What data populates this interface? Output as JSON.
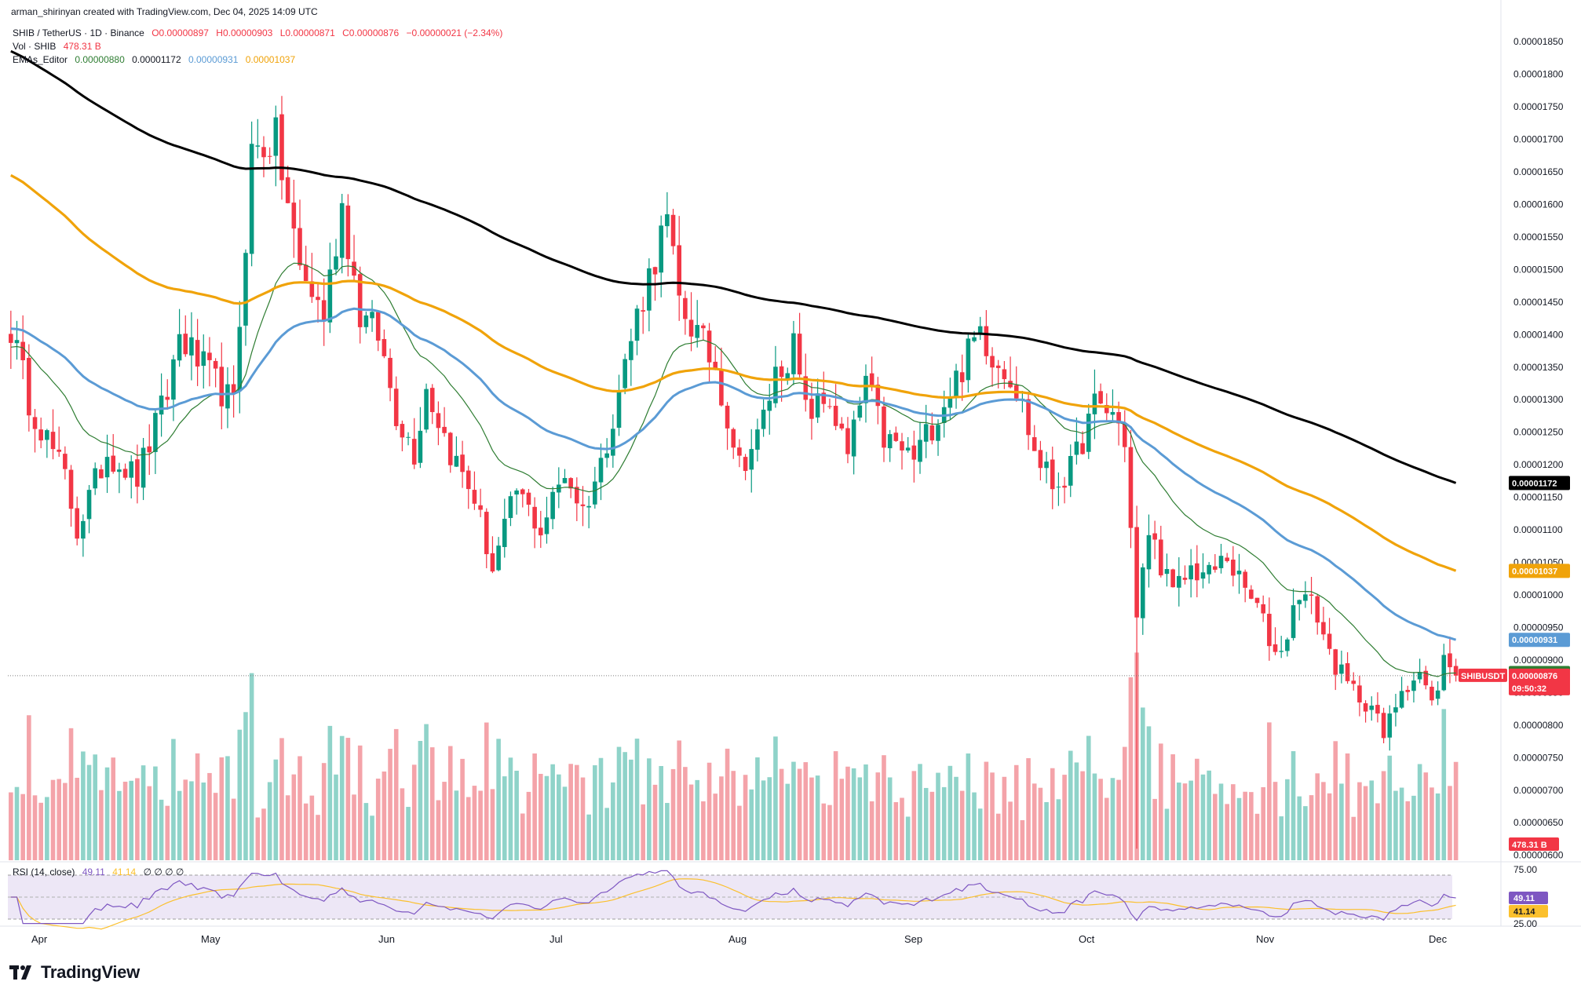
{
  "attribution": "arman_shirinyan created with TradingView.com, Dec 04, 2025 14:09 UTC",
  "legend": {
    "symbol": "SHIB / TetherUS · 1D · Binance",
    "open": "O0.00000897",
    "high": "H0.00000903",
    "low": "L0.00000871",
    "close": "C0.00000876",
    "change": "−0.00000021 (−2.34%)",
    "vol_label": "Vol · SHIB",
    "vol_value": "478.31 B",
    "ema_label": "EMAs_Editor",
    "ema_values": [
      "0.00000880",
      "0.00001172",
      "0.00000931",
      "0.00001037"
    ]
  },
  "rsi_legend": {
    "label": "RSI (14, close)",
    "rsi_value": "49.11",
    "ma_value": "41.14",
    "zeros": "∅ ∅ ∅ ∅"
  },
  "colors": {
    "up": "#089981",
    "down": "#f23645",
    "vol_up": "#8fd3c9",
    "vol_down": "#f4a3a9",
    "ema20": "#2e7d32",
    "ema200": "#000000",
    "ema50": "#5b9bd5",
    "ema100": "#f0a30a",
    "rsi": "#7e57c2",
    "rsi_ma": "#fbc02d",
    "rsi_band": "#ede7f6"
  },
  "footer": {
    "logo_text": "TradingView"
  },
  "chart_data": {
    "type": "candlestick",
    "symbol": "SHIBUSDT",
    "interval": "1D",
    "y_axis_ticks": [
      "0.00001850",
      "0.00001800",
      "0.00001750",
      "0.00001700",
      "0.00001650",
      "0.00001600",
      "0.00001550",
      "0.00001500",
      "0.00001450",
      "0.00001400",
      "0.00001350",
      "0.00001300",
      "0.00001250",
      "0.00001200",
      "0.00001150",
      "0.00001100",
      "0.00001050",
      "0.00001000",
      "0.00000950",
      "0.00000900",
      "0.00000850",
      "0.00000800",
      "0.00000750",
      "0.00000700",
      "0.00000650",
      "0.00000600"
    ],
    "ylim": [
      5.9e-06,
      1.89e-05
    ],
    "x_axis_labels": [
      "Apr",
      "May",
      "Jun",
      "Jul",
      "Aug",
      "Sep",
      "Oct",
      "Nov",
      "Dec"
    ],
    "last_price": {
      "label": "SHIBUSDT",
      "value": "0.00000876",
      "countdown": "09:50:32"
    },
    "price_tags": [
      {
        "value": "0.00001172",
        "series": "EMA 200"
      },
      {
        "value": "0.00001037",
        "series": "EMA 100"
      },
      {
        "value": "0.00000931",
        "series": "EMA 50"
      },
      {
        "value": "0.00000880",
        "series": "EMA 20"
      }
    ],
    "volume_tag": "478.31 B",
    "ema_endpoints": {
      "ema20": 8.8e-06,
      "ema50": 9.31e-06,
      "ema100": 1.037e-05,
      "ema200": 1.172e-05
    },
    "price_path_anchors": [
      [
        0,
        1.41e-05
      ],
      [
        3,
        1.3e-05
      ],
      [
        9,
        1.18e-05
      ],
      [
        11,
        1.1e-05
      ],
      [
        16,
        1.22e-05
      ],
      [
        21,
        1.18e-05
      ],
      [
        26,
        1.31e-05
      ],
      [
        28,
        1.4e-05
      ],
      [
        31,
        1.36e-05
      ],
      [
        37,
        1.29e-05
      ],
      [
        40,
        1.68e-05
      ],
      [
        44,
        1.7e-05
      ],
      [
        48,
        1.5e-05
      ],
      [
        52,
        1.43e-05
      ],
      [
        55,
        1.6e-05
      ],
      [
        58,
        1.43e-05
      ],
      [
        61,
        1.4e-05
      ],
      [
        64,
        1.28e-05
      ],
      [
        67,
        1.22e-05
      ],
      [
        69,
        1.32e-05
      ],
      [
        73,
        1.22e-05
      ],
      [
        77,
        1.15e-05
      ],
      [
        80,
        1.04e-05
      ],
      [
        84,
        1.16e-05
      ],
      [
        88,
        1.1e-05
      ],
      [
        92,
        1.19e-05
      ],
      [
        95,
        1.13e-05
      ],
      [
        98,
        1.2e-05
      ],
      [
        100,
        1.28e-05
      ],
      [
        104,
        1.43e-05
      ],
      [
        108,
        1.55e-05
      ],
      [
        109,
        1.57e-05
      ],
      [
        111,
        1.45e-05
      ],
      [
        114,
        1.4e-05
      ],
      [
        117,
        1.35e-05
      ],
      [
        121,
        1.2e-05
      ],
      [
        124,
        1.24e-05
      ],
      [
        127,
        1.34e-05
      ],
      [
        130,
        1.38e-05
      ],
      [
        132,
        1.28e-05
      ],
      [
        136,
        1.3e-05
      ],
      [
        139,
        1.21e-05
      ],
      [
        142,
        1.33e-05
      ],
      [
        145,
        1.24e-05
      ],
      [
        150,
        1.21e-05
      ],
      [
        154,
        1.28e-05
      ],
      [
        158,
        1.35e-05
      ],
      [
        161,
        1.41e-05
      ],
      [
        163,
        1.37e-05
      ],
      [
        166,
        1.34e-05
      ],
      [
        168,
        1.29e-05
      ],
      [
        170,
        1.22e-05
      ],
      [
        173,
        1.17e-05
      ],
      [
        176,
        1.19e-05
      ],
      [
        180,
        1.29e-05
      ],
      [
        183,
        1.28e-05
      ],
      [
        185,
        1.24e-05
      ],
      [
        187,
        9.6e-06
      ],
      [
        189,
        1.1e-05
      ],
      [
        193,
        1e-05
      ],
      [
        196,
        1.04e-05
      ],
      [
        199,
        1.03e-05
      ],
      [
        202,
        1.06e-05
      ],
      [
        204,
        1.02e-05
      ],
      [
        207,
        9.8e-06
      ],
      [
        210,
        9.1e-06
      ],
      [
        212,
        9.4e-06
      ],
      [
        214,
        1.01e-05
      ],
      [
        217,
        9.7e-06
      ],
      [
        219,
        9.1e-06
      ],
      [
        222,
        8.6e-06
      ],
      [
        226,
        8.3e-06
      ],
      [
        228,
        7.8e-06
      ],
      [
        231,
        8.6e-06
      ],
      [
        234,
        8.8e-06
      ],
      [
        236,
        8.3e-06
      ],
      [
        238,
        9e-06
      ],
      [
        240,
        8.8e-06
      ]
    ],
    "rsi": {
      "levels": [
        75,
        25
      ],
      "mid": 50,
      "last": 49.11,
      "ma_last": 41.14
    }
  }
}
